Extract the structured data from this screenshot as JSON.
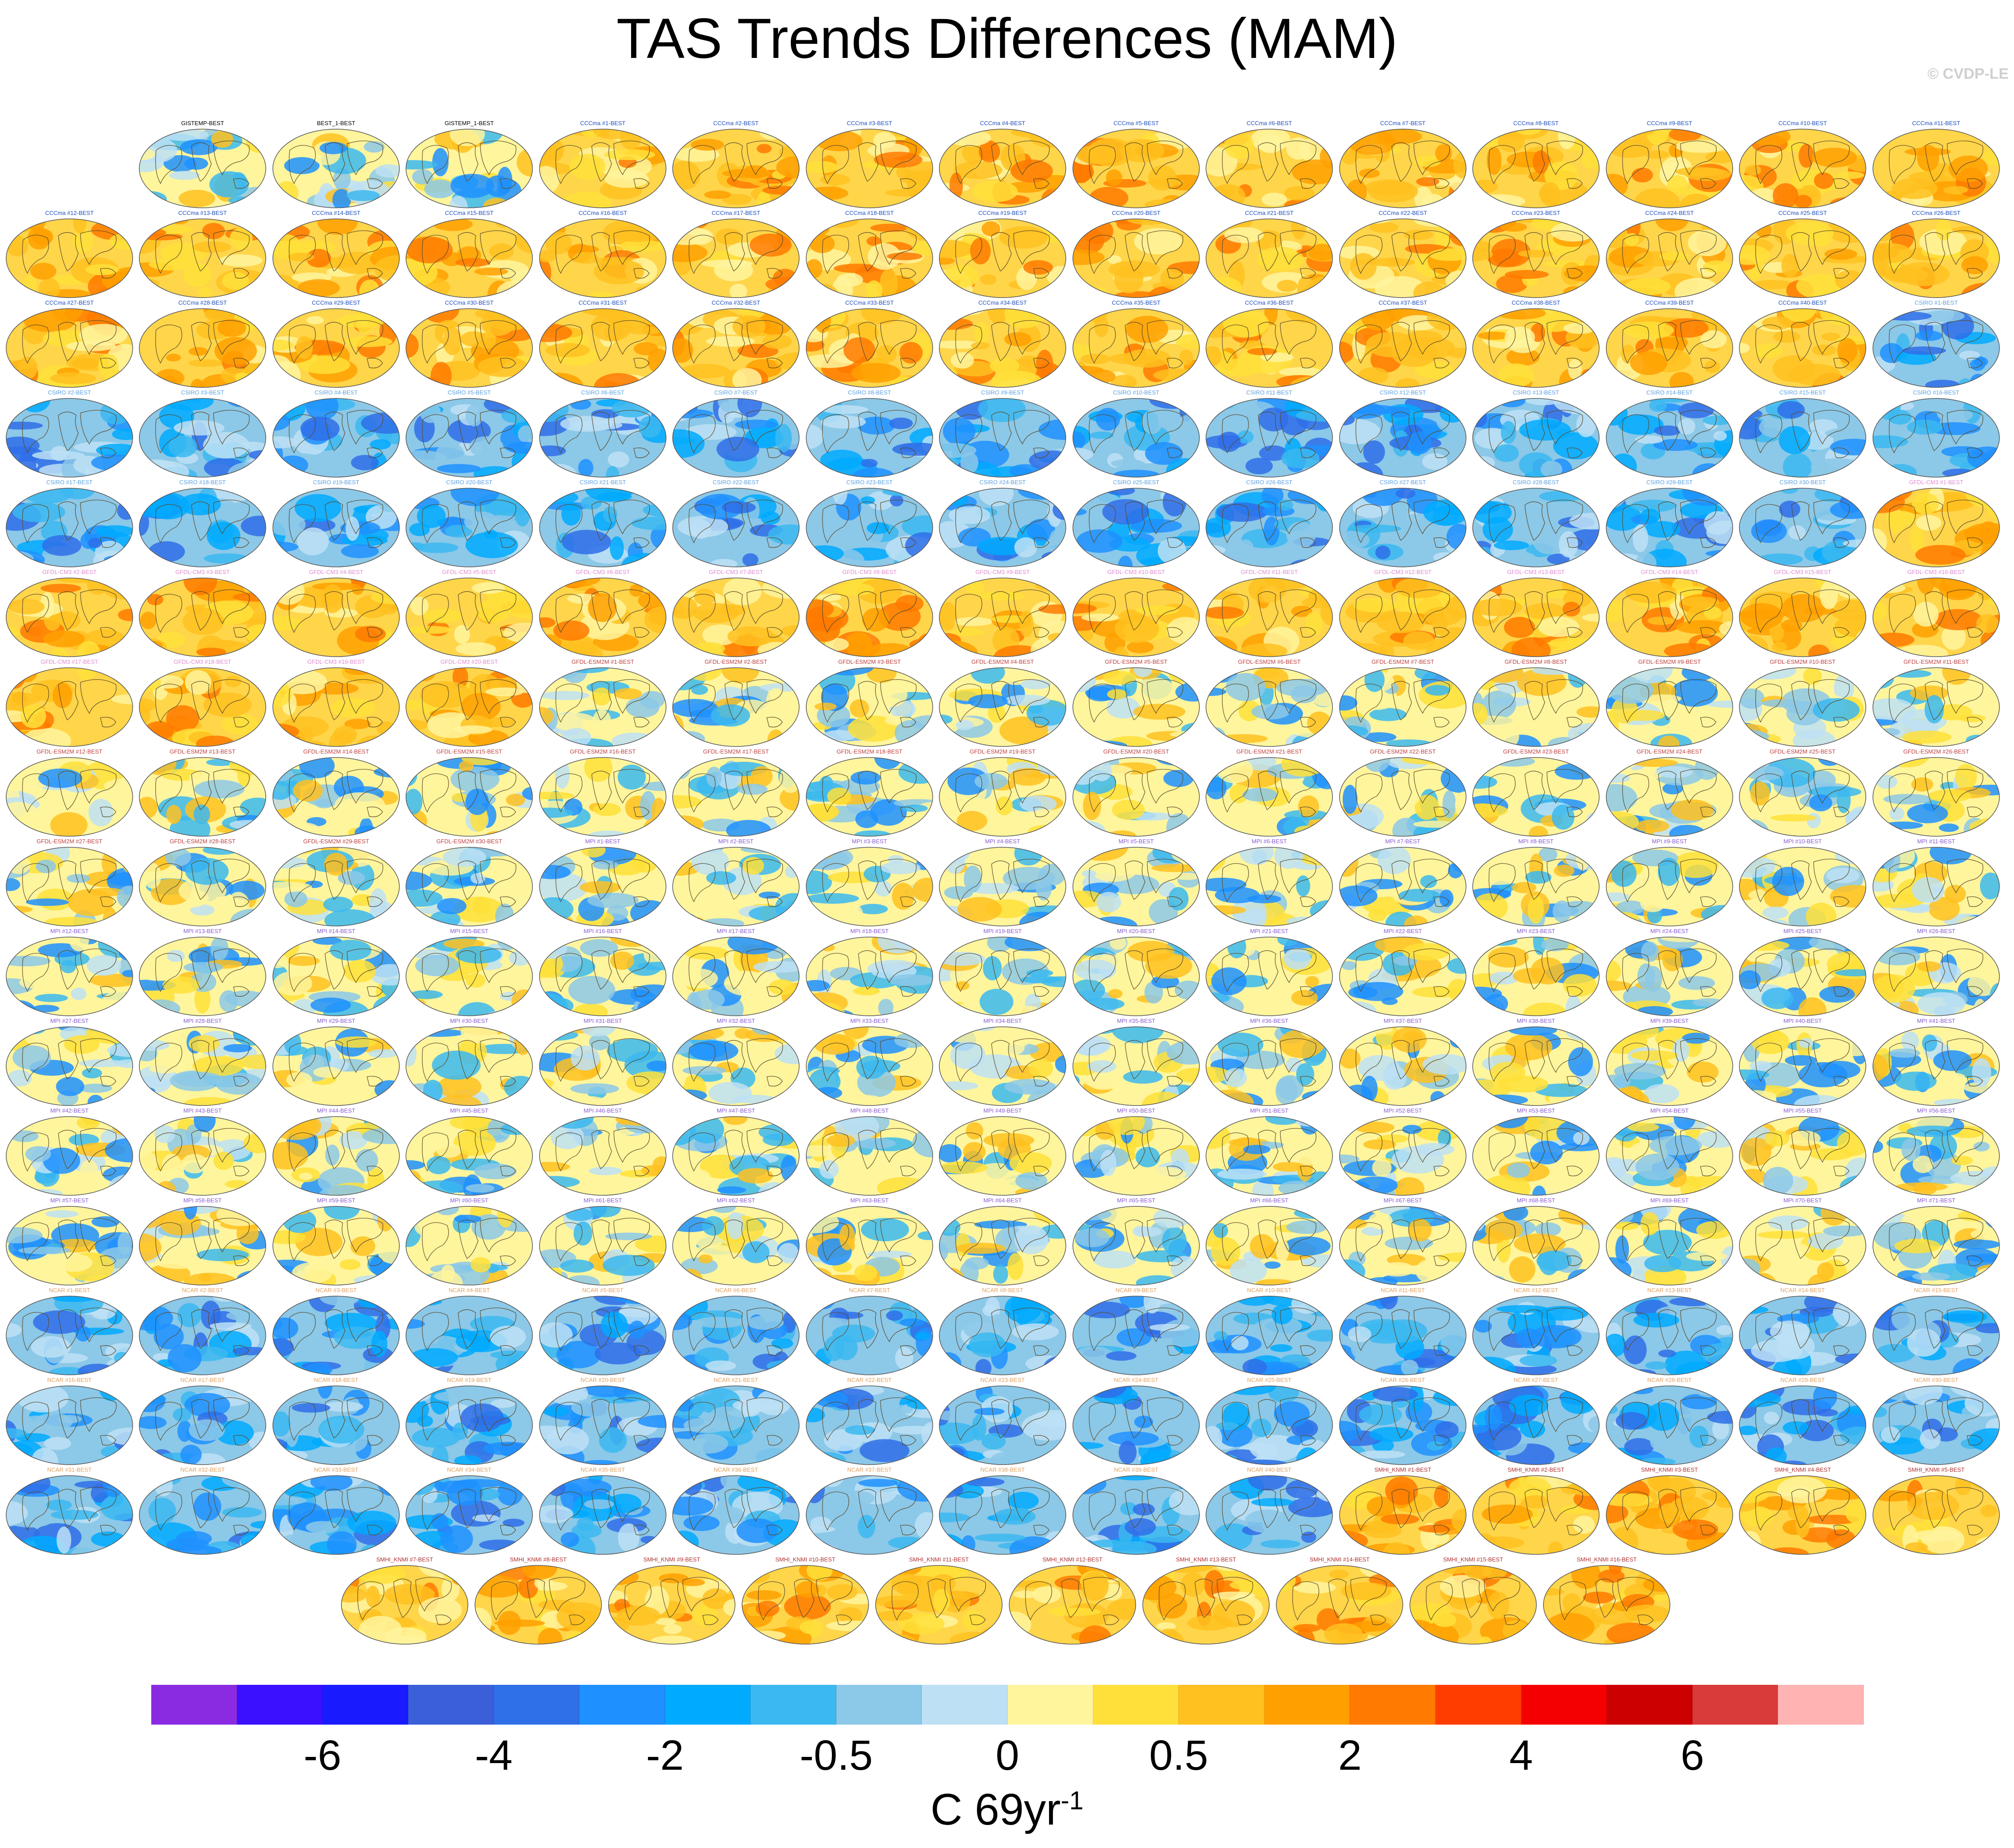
{
  "title": "TAS Trends Differences (MAM)",
  "watermark": "© CVDP-LE",
  "colorbar": {
    "colors": [
      "#8a2be2",
      "#3b0fff",
      "#1a1aff",
      "#3a5fd9",
      "#2f6fe8",
      "#1e90ff",
      "#00aaff",
      "#3bb8f0",
      "#8cc8e8",
      "#bde0f5",
      "#fff59d",
      "#ffe03a",
      "#ffc120",
      "#ffa000",
      "#ff7a00",
      "#ff3d00",
      "#f50000",
      "#cc0000",
      "#d93a3a",
      "#ffb3b3"
    ],
    "tick_labels": [
      "-6",
      "-4",
      "-2",
      "-0.5",
      "0",
      "0.5",
      "2",
      "4",
      "6"
    ],
    "unit_text": "C 69yr",
    "unit_superscript": "-1"
  },
  "panel_titles": [
    "GISTEMP-BEST",
    "BEST_1-BEST",
    "GISTEMP_1-BEST",
    "CCCma #1-BEST",
    "CCCma #2-BEST",
    "CCCma #3-BEST",
    "CCCma #4-BEST",
    "CCCma #5-BEST",
    "CCCma #6-BEST",
    "CCCma #7-BEST",
    "CCCma #8-BEST",
    "CCCma #9-BEST",
    "CCCma #10-BEST",
    "CCCma #11-BEST",
    "CCCma #12-BEST",
    "CCCma #13-BEST",
    "CCCma #14-BEST",
    "CCCma #15-BEST",
    "CCCma #16-BEST",
    "CCCma #17-BEST",
    "CCCma #18-BEST",
    "CCCma #19-BEST",
    "CCCma #20-BEST",
    "CCCma #21-BEST",
    "CCCma #22-BEST",
    "CCCma #23-BEST",
    "CCCma #24-BEST",
    "CCCma #25-BEST",
    "CCCma #26-BEST",
    "CCCma #27-BEST",
    "CCCma #28-BEST",
    "CCCma #29-BEST",
    "CCCma #30-BEST",
    "CCCma #31-BEST",
    "CCCma #32-BEST",
    "CCCma #33-BEST",
    "CCCma #34-BEST",
    "CCCma #35-BEST",
    "CCCma #36-BEST",
    "CCCma #37-BEST",
    "CCCma #38-BEST",
    "CCCma #39-BEST",
    "CCCma #40-BEST",
    "CSIRO #1-BEST",
    "CSIRO #2-BEST",
    "CSIRO #3-BEST",
    "CSIRO #4-BEST",
    "CSIRO #5-BEST",
    "CSIRO #6-BEST",
    "CSIRO #7-BEST",
    "CSIRO #8-BEST",
    "CSIRO #9-BEST",
    "CSIRO #10-BEST",
    "CSIRO #11-BEST",
    "CSIRO #12-BEST",
    "CSIRO #13-BEST",
    "CSIRO #14-BEST",
    "CSIRO #15-BEST",
    "CSIRO #16-BEST",
    "CSIRO #17-BEST",
    "CSIRO #18-BEST",
    "CSIRO #19-BEST",
    "CSIRO #20-BEST",
    "CSIRO #21-BEST",
    "CSIRO #22-BEST",
    "CSIRO #23-BEST",
    "CSIRO #24-BEST",
    "CSIRO #25-BEST",
    "CSIRO #26-BEST",
    "CSIRO #27-BEST",
    "CSIRO #28-BEST",
    "CSIRO #29-BEST",
    "CSIRO #30-BEST",
    "GFDL-CM3 #1-BEST",
    "GFDL-CM3 #2-BEST",
    "GFDL-CM3 #3-BEST",
    "GFDL-CM3 #4-BEST",
    "GFDL-CM3 #5-BEST",
    "GFDL-CM3 #6-BEST",
    "GFDL-CM3 #7-BEST",
    "GFDL-CM3 #8-BEST",
    "GFDL-CM3 #9-BEST",
    "GFDL-CM3 #10-BEST",
    "GFDL-CM3 #11-BEST",
    "GFDL-CM3 #12-BEST",
    "GFDL-CM3 #13-BEST",
    "GFDL-CM3 #14-BEST",
    "GFDL-CM3 #15-BEST",
    "GFDL-CM3 #16-BEST",
    "GFDL-CM3 #17-BEST",
    "GFDL-CM3 #18-BEST",
    "GFDL-CM3 #19-BEST",
    "GFDL-CM3 #20-BEST",
    "GFDL-ESM2M #1-BEST",
    "GFDL-ESM2M #2-BEST",
    "GFDL-ESM2M #3-BEST",
    "GFDL-ESM2M #4-BEST",
    "GFDL-ESM2M #5-BEST",
    "GFDL-ESM2M #6-BEST",
    "GFDL-ESM2M #7-BEST",
    "GFDL-ESM2M #8-BEST",
    "GFDL-ESM2M #9-BEST",
    "GFDL-ESM2M #10-BEST",
    "GFDL-ESM2M #11-BEST",
    "GFDL-ESM2M #12-BEST",
    "GFDL-ESM2M #13-BEST",
    "GFDL-ESM2M #14-BEST",
    "GFDL-ESM2M #15-BEST",
    "GFDL-ESM2M #16-BEST",
    "GFDL-ESM2M #17-BEST",
    "GFDL-ESM2M #18-BEST",
    "GFDL-ESM2M #19-BEST",
    "GFDL-ESM2M #20-BEST",
    "GFDL-ESM2M #21-BEST",
    "GFDL-ESM2M #22-BEST",
    "GFDL-ESM2M #23-BEST",
    "GFDL-ESM2M #24-BEST",
    "GFDL-ESM2M #25-BEST",
    "GFDL-ESM2M #26-BEST",
    "GFDL-ESM2M #27-BEST",
    "GFDL-ESM2M #28-BEST",
    "GFDL-ESM2M #29-BEST",
    "GFDL-ESM2M #30-BEST",
    "MPI #1-BEST",
    "MPI #2-BEST",
    "MPI #3-BEST",
    "MPI #4-BEST",
    "MPI #5-BEST",
    "MPI #6-BEST",
    "MPI #7-BEST",
    "MPI #8-BEST",
    "MPI #9-BEST",
    "MPI #10-BEST",
    "MPI #11-BEST",
    "MPI #12-BEST",
    "MPI #13-BEST",
    "MPI #14-BEST",
    "MPI #15-BEST",
    "MPI #16-BEST",
    "MPI #17-BEST",
    "MPI #18-BEST",
    "MPI #19-BEST",
    "MPI #20-BEST",
    "MPI #21-BEST",
    "MPI #22-BEST",
    "MPI #23-BEST",
    "MPI #24-BEST",
    "MPI #25-BEST",
    "MPI #26-BEST",
    "MPI #27-BEST",
    "MPI #28-BEST",
    "MPI #29-BEST",
    "MPI #30-BEST",
    "MPI #31-BEST",
    "MPI #32-BEST",
    "MPI #33-BEST",
    "MPI #34-BEST",
    "MPI #35-BEST",
    "MPI #36-BEST",
    "MPI #37-BEST",
    "MPI #38-BEST",
    "MPI #39-BEST",
    "MPI #40-BEST",
    "MPI #41-BEST",
    "MPI #42-BEST",
    "MPI #43-BEST",
    "MPI #44-BEST",
    "MPI #45-BEST",
    "MPI #46-BEST",
    "MPI #47-BEST",
    "MPI #48-BEST",
    "MPI #49-BEST",
    "MPI #50-BEST",
    "MPI #51-BEST",
    "MPI #52-BEST",
    "MPI #53-BEST",
    "MPI #54-BEST",
    "MPI #55-BEST",
    "MPI #56-BEST",
    "MPI #57-BEST",
    "MPI #58-BEST",
    "MPI #59-BEST",
    "MPI #60-BEST",
    "MPI #61-BEST",
    "MPI #62-BEST",
    "MPI #63-BEST",
    "MPI #64-BEST",
    "MPI #65-BEST",
    "MPI #66-BEST",
    "MPI #67-BEST",
    "MPI #68-BEST",
    "MPI #69-BEST",
    "MPI #70-BEST",
    "MPI #71-BEST",
    "NCAR #1-BEST",
    "NCAR #2-BEST",
    "NCAR #3-BEST",
    "NCAR #4-BEST",
    "NCAR #5-BEST",
    "NCAR #6-BEST",
    "NCAR #7-BEST",
    "NCAR #8-BEST",
    "NCAR #9-BEST",
    "NCAR #10-BEST",
    "NCAR #11-BEST",
    "NCAR #12-BEST",
    "NCAR #13-BEST",
    "NCAR #14-BEST",
    "NCAR #15-BEST",
    "NCAR #16-BEST",
    "NCAR #17-BEST",
    "NCAR #18-BEST",
    "NCAR #19-BEST",
    "NCAR #20-BEST",
    "NCAR #21-BEST",
    "NCAR #22-BEST",
    "NCAR #23-BEST",
    "NCAR #24-BEST",
    "NCAR #25-BEST",
    "NCAR #26-BEST",
    "NCAR #27-BEST",
    "NCAR #28-BEST",
    "NCAR #29-BEST",
    "NCAR #30-BEST",
    "NCAR #31-BEST",
    "NCAR #32-BEST",
    "NCAR #33-BEST",
    "NCAR #34-BEST",
    "NCAR #35-BEST",
    "NCAR #36-BEST",
    "NCAR #37-BEST",
    "NCAR #38-BEST",
    "NCAR #39-BEST",
    "NCAR #40-BEST",
    "SMHI_KNMI #1-BEST",
    "SMHI_KNMI #2-BEST",
    "SMHI_KNMI #3-BEST",
    "SMHI_KNMI #4-BEST",
    "SMHI_KNMI #5-BEST",
    "SMHI_KNMI #7-BEST",
    "SMHI_KNMI #8-BEST",
    "SMHI_KNMI #9-BEST",
    "SMHI_KNMI #10-BEST",
    "SMHI_KNMI #11-BEST",
    "SMHI_KNMI #12-BEST",
    "SMHI_KNMI #13-BEST",
    "SMHI_KNMI #14-BEST",
    "SMHI_KNMI #15-BEST",
    "SMHI_KNMI #16-BEST"
  ],
  "title_colors": {
    "observed": "#000000",
    "CCCma": "#1f4fbf",
    "CSIRO": "#5aa0e0",
    "GFDL-CM3": "#e08ad0",
    "GFDL-ESM2M": "#c04040",
    "MPI": "#8a5ad0",
    "NCAR": "#e0a060",
    "SMHI_KNMI": "#b03030"
  },
  "panel_dominant_tone": {
    "observed": "mixed",
    "CCCma": "warm",
    "CSIRO": "cool",
    "GFDL-CM3": "warm",
    "GFDL-ESM2M": "mixed",
    "MPI": "mixed",
    "NCAR": "cool",
    "SMHI_KNMI": "warm"
  }
}
